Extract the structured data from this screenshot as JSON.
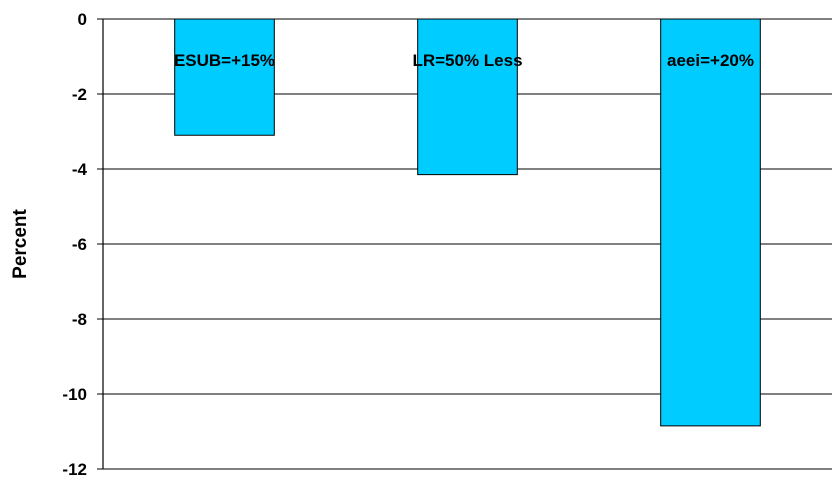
{
  "chart_data": {
    "type": "bar",
    "title": "",
    "xlabel": "",
    "ylabel": "Percent",
    "categories": [
      "ESUB=+15%",
      "LR=50% Less",
      "aeei=+20%"
    ],
    "values": [
      -3.1,
      -4.15,
      -10.85
    ],
    "ylim": [
      -12,
      0
    ],
    "yticks": [
      0,
      -2,
      -4,
      -6,
      -8,
      -10,
      -12
    ],
    "grid": true,
    "bar_color": "#00ccff",
    "legend": "none"
  }
}
